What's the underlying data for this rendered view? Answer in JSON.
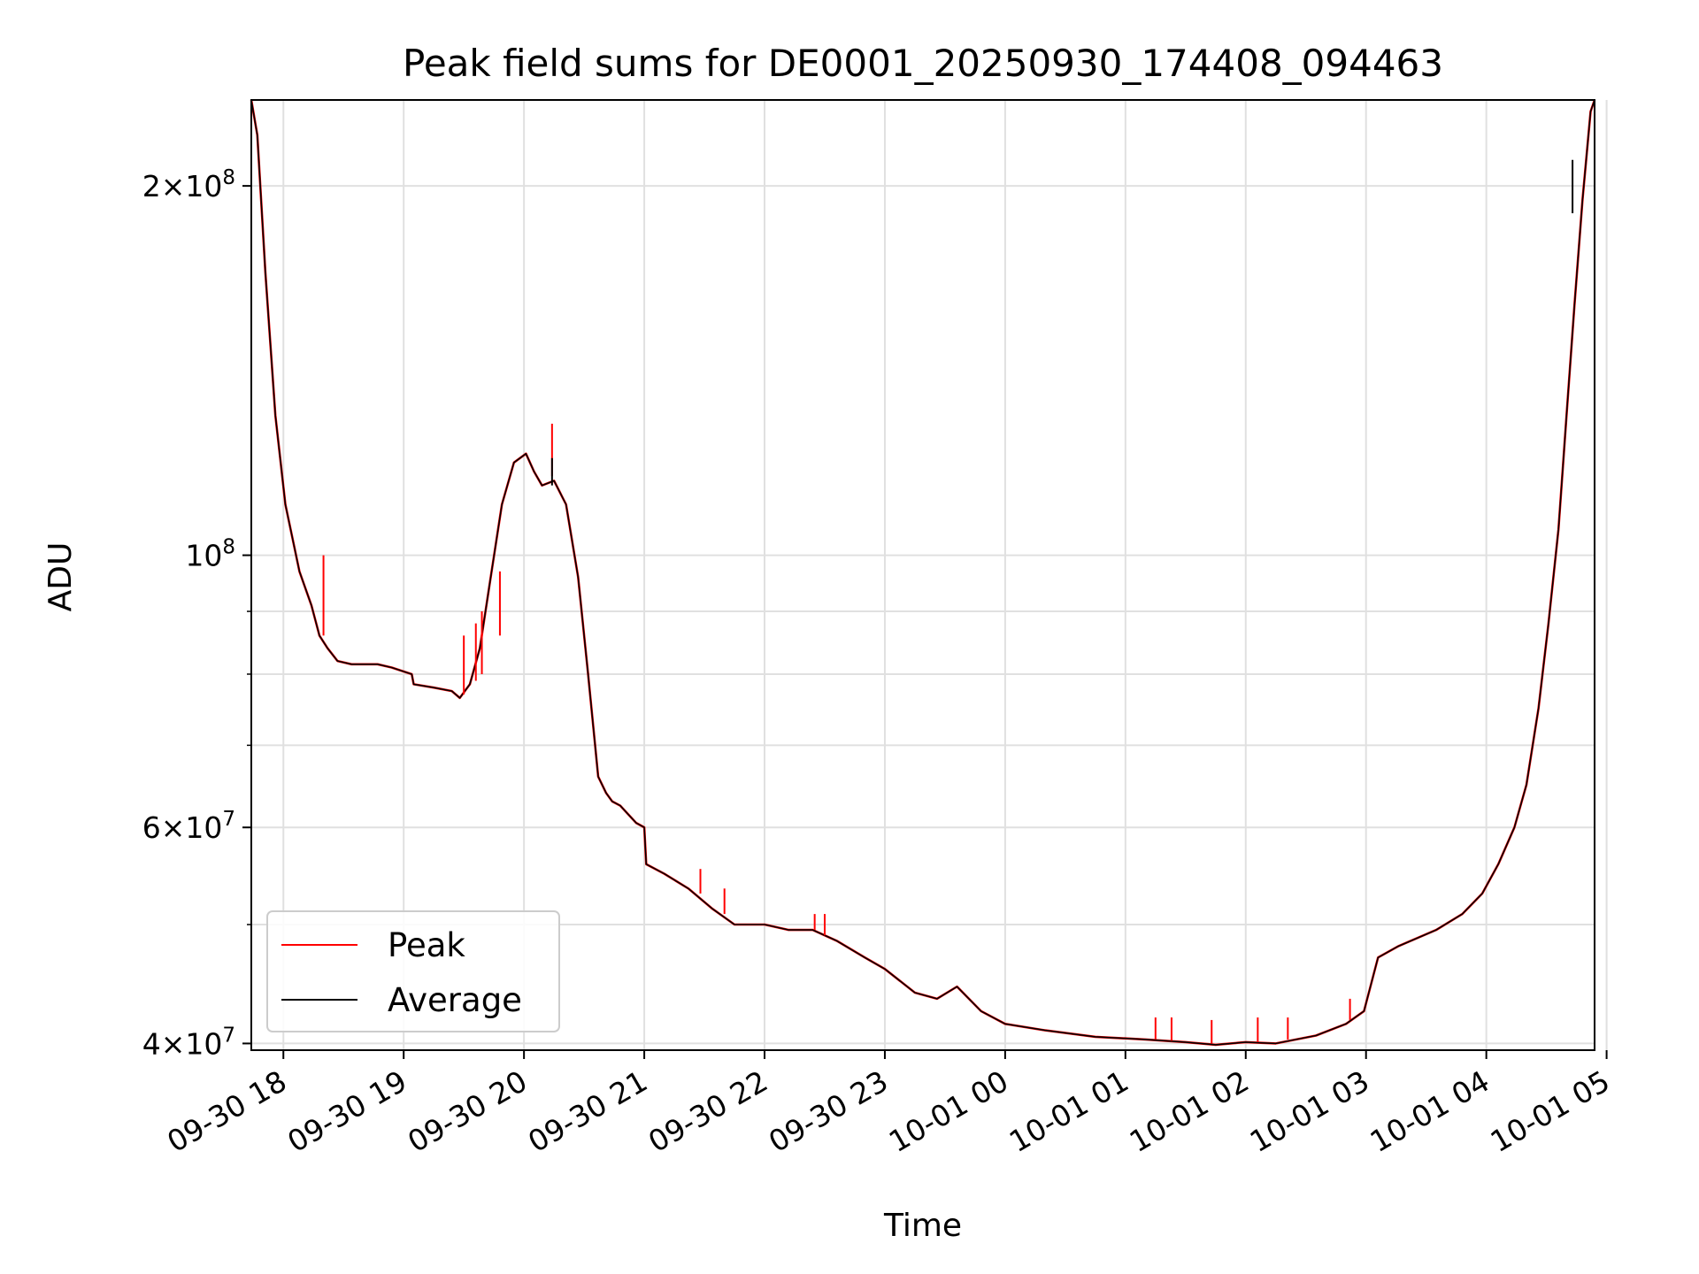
{
  "chart_data": {
    "type": "line",
    "title": "Peak field sums for DE0001_20250930_174408_094463",
    "xlabel": "Time",
    "ylabel": "ADU",
    "yscale": "log",
    "ylim": [
      39500000,
      235000000
    ],
    "xlim": [
      "2025-09-30 17:44",
      "2025-10-01 04:54"
    ],
    "grid": true,
    "legend": "lower-left",
    "x_ticks": [
      "09-30 18",
      "09-30 19",
      "09-30 20",
      "09-30 21",
      "09-30 22",
      "09-30 23",
      "10-01 00",
      "10-01 01",
      "10-01 02",
      "10-01 03",
      "10-01 04",
      "10-01 05"
    ],
    "x_tick_values": [
      "2025-09-30 18:00",
      "2025-09-30 19:00",
      "2025-09-30 20:00",
      "2025-09-30 21:00",
      "2025-09-30 22:00",
      "2025-09-30 23:00",
      "2025-10-01 00:00",
      "2025-10-01 01:00",
      "2025-10-01 02:00",
      "2025-10-01 03:00",
      "2025-10-01 04:00",
      "2025-10-01 05:00"
    ],
    "y_ticks": [
      {
        "value": 40000000,
        "mant": "4",
        "exp": "7"
      },
      {
        "value": 60000000,
        "mant": "6",
        "exp": "7"
      },
      {
        "value": 100000000,
        "mant": "",
        "exp": "8"
      },
      {
        "value": 200000000,
        "mant": "2",
        "exp": "8"
      }
    ],
    "y_minor_grid": [
      50000000,
      70000000,
      80000000,
      90000000
    ],
    "x": [
      "2025-09-30 17:44",
      "2025-09-30 17:47",
      "2025-09-30 17:51",
      "2025-09-30 17:56",
      "2025-09-30 18:01",
      "2025-09-30 18:08",
      "2025-09-30 18:14",
      "2025-09-30 18:18",
      "2025-09-30 18:22",
      "2025-09-30 18:27",
      "2025-09-30 18:34",
      "2025-09-30 18:40",
      "2025-09-30 18:47",
      "2025-09-30 18:54",
      "2025-09-30 19:04",
      "2025-09-30 19:05",
      "2025-09-30 19:15",
      "2025-09-30 19:24",
      "2025-09-30 19:28",
      "2025-09-30 19:33",
      "2025-09-30 19:38",
      "2025-09-30 19:43",
      "2025-09-30 19:49",
      "2025-09-30 19:55",
      "2025-09-30 20:01",
      "2025-09-30 20:05",
      "2025-09-30 20:09",
      "2025-09-30 20:15",
      "2025-09-30 20:21",
      "2025-09-30 20:27",
      "2025-09-30 20:32",
      "2025-09-30 20:37",
      "2025-09-30 20:41",
      "2025-09-30 20:44",
      "2025-09-30 20:48",
      "2025-09-30 20:52",
      "2025-09-30 20:56",
      "2025-09-30 21:00",
      "2025-09-30 21:01",
      "2025-09-30 21:10",
      "2025-09-30 21:22",
      "2025-09-30 21:34",
      "2025-09-30 21:45",
      "2025-09-30 22:00",
      "2025-09-30 22:12",
      "2025-09-30 22:24",
      "2025-09-30 22:36",
      "2025-09-30 22:50",
      "2025-09-30 23:00",
      "2025-09-30 23:15",
      "2025-09-30 23:26",
      "2025-09-30 23:36",
      "2025-09-30 23:48",
      "2025-10-01 00:00",
      "2025-10-01 00:20",
      "2025-10-01 00:45",
      "2025-10-01 01:10",
      "2025-10-01 01:30",
      "2025-10-01 01:45",
      "2025-10-01 02:00",
      "2025-10-01 02:15",
      "2025-10-01 02:35",
      "2025-10-01 02:50",
      "2025-10-01 02:59",
      "2025-10-01 03:06",
      "2025-10-01 03:16",
      "2025-10-01 03:35",
      "2025-10-01 03:48",
      "2025-10-01 03:58",
      "2025-10-01 04:06",
      "2025-10-01 04:14",
      "2025-10-01 04:20",
      "2025-10-01 04:26",
      "2025-10-01 04:31",
      "2025-10-01 04:36",
      "2025-10-01 04:40",
      "2025-10-01 04:44",
      "2025-10-01 04:48",
      "2025-10-01 04:52",
      "2025-10-01 04:54"
    ],
    "series": [
      {
        "name": "Peak",
        "color": "#ff0000",
        "values": [
          235000000,
          220000000,
          170000000,
          130000000,
          110000000,
          97000000,
          91000000,
          86000000,
          84000000,
          82000000,
          81500000,
          81500000,
          81500000,
          81000000,
          80000000,
          78500000,
          78000000,
          77500000,
          76500000,
          78500000,
          84000000,
          95000000,
          110000000,
          119000000,
          121000000,
          117000000,
          114000000,
          115000000,
          110000000,
          96000000,
          80000000,
          66000000,
          64000000,
          63000000,
          62500000,
          61500000,
          60500000,
          60000000,
          56000000,
          55000000,
          53500000,
          51500000,
          50000000,
          50000000,
          49500000,
          49500000,
          48500000,
          47000000,
          46000000,
          44000000,
          43500000,
          44500000,
          42500000,
          41500000,
          41000000,
          40500000,
          40300000,
          40100000,
          39900000,
          40100000,
          40000000,
          40600000,
          41500000,
          42500000,
          47000000,
          48000000,
          49500000,
          51000000,
          53000000,
          56000000,
          60000000,
          65000000,
          75000000,
          88000000,
          105000000,
          130000000,
          160000000,
          195000000,
          230000000,
          235000000
        ]
      },
      {
        "name": "Average",
        "color": "#000000",
        "values": [
          235000000,
          220000000,
          170000000,
          130000000,
          110000000,
          97000000,
          91000000,
          86000000,
          84000000,
          82000000,
          81500000,
          81500000,
          81500000,
          81000000,
          80000000,
          78500000,
          78000000,
          77500000,
          76500000,
          78500000,
          84000000,
          95000000,
          110000000,
          119000000,
          121000000,
          117000000,
          114000000,
          115000000,
          110000000,
          96000000,
          80000000,
          66000000,
          64000000,
          63000000,
          62500000,
          61500000,
          60500000,
          60000000,
          56000000,
          55000000,
          53500000,
          51500000,
          50000000,
          50000000,
          49500000,
          49500000,
          48500000,
          47000000,
          46000000,
          44000000,
          43500000,
          44500000,
          42500000,
          41500000,
          41000000,
          40500000,
          40300000,
          40100000,
          39900000,
          40100000,
          40000000,
          40600000,
          41500000,
          42500000,
          47000000,
          48000000,
          49500000,
          51000000,
          53000000,
          56000000,
          60000000,
          65000000,
          75000000,
          88000000,
          105000000,
          130000000,
          160000000,
          195000000,
          230000000,
          235000000
        ]
      }
    ],
    "spikes": [
      {
        "series": "Peak",
        "x": "2025-09-30 18:20",
        "base": 86000000,
        "top": 100000000
      },
      {
        "series": "Peak",
        "x": "2025-09-30 19:30",
        "base": 77000000,
        "top": 86000000
      },
      {
        "series": "Peak",
        "x": "2025-09-30 19:36",
        "base": 79000000,
        "top": 88000000
      },
      {
        "series": "Peak",
        "x": "2025-09-30 19:39",
        "base": 80000000,
        "top": 90000000
      },
      {
        "series": "Peak",
        "x": "2025-09-30 19:48",
        "base": 86000000,
        "top": 97000000
      },
      {
        "series": "Peak",
        "x": "2025-09-30 20:14",
        "base": 116000000,
        "top": 128000000
      },
      {
        "series": "Average",
        "x": "2025-09-30 20:14",
        "base": 114000000,
        "top": 120000000
      },
      {
        "series": "Peak",
        "x": "2025-09-30 21:28",
        "base": 53000000,
        "top": 55500000
      },
      {
        "series": "Peak",
        "x": "2025-09-30 21:40",
        "base": 51000000,
        "top": 53500000
      },
      {
        "series": "Peak",
        "x": "2025-09-30 22:25",
        "base": 49500000,
        "top": 51000000
      },
      {
        "series": "Peak",
        "x": "2025-09-30 22:30",
        "base": 49000000,
        "top": 51000000
      },
      {
        "series": "Peak",
        "x": "2025-10-01 01:15",
        "base": 40300000,
        "top": 42000000
      },
      {
        "series": "Peak",
        "x": "2025-10-01 01:23",
        "base": 40200000,
        "top": 42000000
      },
      {
        "series": "Peak",
        "x": "2025-10-01 01:43",
        "base": 40000000,
        "top": 41800000
      },
      {
        "series": "Peak",
        "x": "2025-10-01 02:06",
        "base": 40100000,
        "top": 42000000
      },
      {
        "series": "Peak",
        "x": "2025-10-01 02:21",
        "base": 40300000,
        "top": 42000000
      },
      {
        "series": "Peak",
        "x": "2025-10-01 02:52",
        "base": 41800000,
        "top": 43500000
      },
      {
        "series": "Average",
        "x": "2025-10-01 04:43",
        "base": 190000000,
        "top": 210000000
      }
    ],
    "legend_entries": [
      {
        "label": "Peak",
        "color": "#ff0000"
      },
      {
        "label": "Average",
        "color": "#000000"
      }
    ]
  }
}
